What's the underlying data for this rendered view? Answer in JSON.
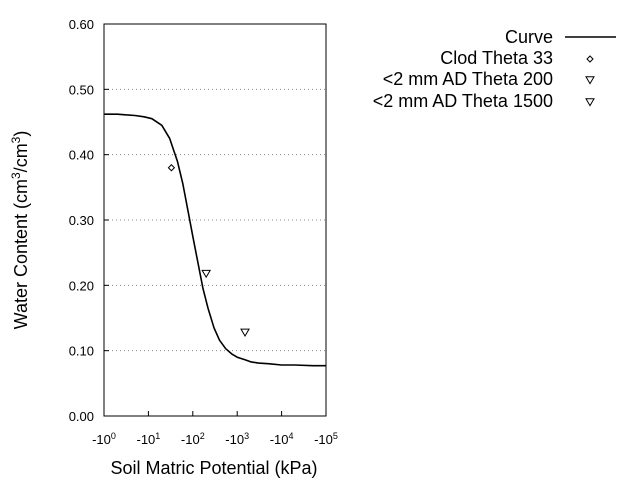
{
  "chart_data": {
    "type": "line",
    "title": "",
    "xlabel": "Soil Matric Potential (kPa)",
    "ylabel_prefix": "Water Content (cm",
    "ylabel_exp1": "3",
    "ylabel_mid": "/cm",
    "ylabel_exp2": "3",
    "ylabel_suffix": ")",
    "x_scale": "log",
    "x_sign": "-",
    "xlim": [
      1,
      100000
    ],
    "ylim": [
      0.0,
      0.6
    ],
    "grid": "horizontal-dotted",
    "legend_position": "top-right",
    "x_tick_base": "-10",
    "x_ticks": [
      {
        "value": 1,
        "exp": "0"
      },
      {
        "value": 10,
        "exp": "1"
      },
      {
        "value": 100,
        "exp": "2"
      },
      {
        "value": 1000,
        "exp": "3"
      },
      {
        "value": 10000,
        "exp": "4"
      },
      {
        "value": 100000,
        "exp": "5"
      }
    ],
    "y_ticks": [
      {
        "value": 0.0,
        "label": "0.00"
      },
      {
        "value": 0.1,
        "label": "0.10"
      },
      {
        "value": 0.2,
        "label": "0.20"
      },
      {
        "value": 0.3,
        "label": "0.30"
      },
      {
        "value": 0.4,
        "label": "0.40"
      },
      {
        "value": 0.5,
        "label": "0.50"
      },
      {
        "value": 0.6,
        "label": "0.60"
      }
    ],
    "series": [
      {
        "name": "Curve",
        "kind": "line",
        "color": "#000000",
        "x": [
          1,
          2,
          3,
          5,
          8,
          12,
          20,
          30,
          45,
          60,
          80,
          100,
          130,
          170,
          220,
          300,
          400,
          550,
          750,
          1000,
          1500,
          2000,
          3000,
          5000,
          10000,
          20000,
          50000,
          100000
        ],
        "y": [
          0.462,
          0.462,
          0.461,
          0.46,
          0.458,
          0.455,
          0.445,
          0.425,
          0.39,
          0.355,
          0.31,
          0.275,
          0.235,
          0.195,
          0.165,
          0.135,
          0.116,
          0.103,
          0.095,
          0.09,
          0.086,
          0.083,
          0.081,
          0.08,
          0.078,
          0.078,
          0.077,
          0.077
        ]
      },
      {
        "name": "Clod Theta 33",
        "kind": "points",
        "marker": "diamond",
        "x": [
          33
        ],
        "y": [
          0.38
        ]
      },
      {
        "name": "<2 mm AD Theta 200",
        "kind": "points",
        "marker": "triangle-down",
        "x": [
          200
        ],
        "y": [
          0.218
        ]
      },
      {
        "name": "<2 mm AD Theta 1500",
        "kind": "points",
        "marker": "triangle-down",
        "x": [
          1500
        ],
        "y": [
          0.128
        ]
      }
    ]
  }
}
